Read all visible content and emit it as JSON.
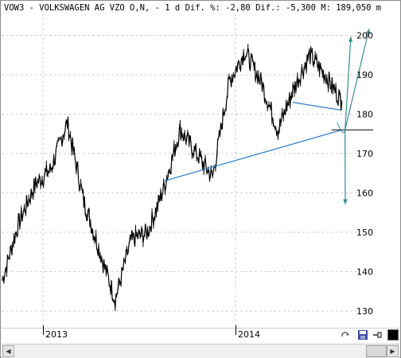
{
  "header": {
    "title": "VOW3 - VOLKSWAGEN AG VZO O,N, -  1 d Dif. %: -2,80 Dif.: -5,300 M: 189,050 m"
  },
  "axes": {
    "y_ticks": [
      "200",
      "190",
      "180",
      "170",
      "160",
      "150",
      "140",
      "130"
    ],
    "x_ticks": [
      "2013",
      "2014"
    ]
  },
  "chart_data": {
    "type": "line",
    "title": "",
    "xlabel": "",
    "ylabel": "",
    "ylim": [
      125,
      203
    ],
    "grid": true,
    "x_ticks": [
      "2013",
      "2014"
    ],
    "y_ticks": [
      200,
      190,
      180,
      170,
      160,
      150,
      140,
      130
    ],
    "series": [
      {
        "x": [
          "2012-09",
          "2012-10",
          "2012-11",
          "2012-12",
          "2013-01",
          "2013-02",
          "2013-03",
          "2013-04",
          "2013-05",
          "2013-06",
          "2013-07",
          "2013-08",
          "2013-09",
          "2013-10",
          "2013-11",
          "2013-12",
          "2014-01",
          "2014-02",
          "2014-03",
          "2014-04",
          "2014-05",
          "2014-06"
        ],
        "values": [
          138,
          152,
          162,
          166,
          178,
          158,
          146,
          133,
          148,
          150,
          161,
          176,
          170,
          164,
          188,
          196,
          188,
          176,
          186,
          195,
          190,
          183
        ]
      }
    ],
    "trendlines": [
      {
        "from": [
          "2013-07",
          163
        ],
        "to": [
          "2014-06",
          176
        ]
      },
      {
        "from": [
          "2014-03",
          183
        ],
        "to": [
          "2014-06",
          181
        ]
      }
    ]
  },
  "colors": {
    "price": "#000000",
    "trendline": "#2a78c8",
    "arrow": "#3a8a90",
    "grid": "#cfcfcf"
  },
  "icons": [
    "redraw-icon",
    "save-icon",
    "pin-icon",
    "color-square-icon",
    "scroll-left-icon",
    "scroll-right-icon"
  ]
}
